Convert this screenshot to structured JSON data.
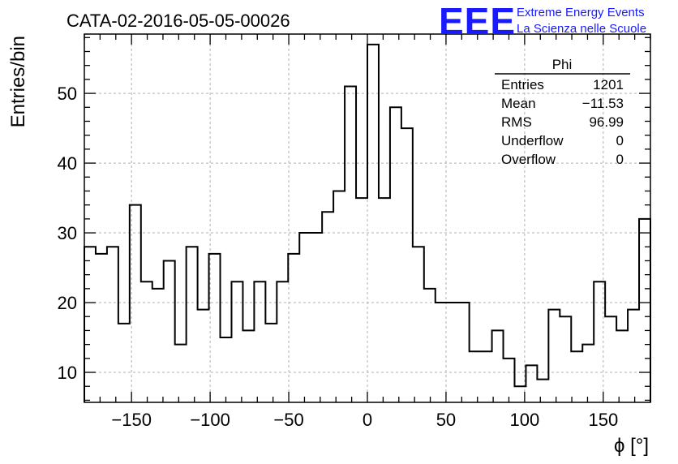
{
  "title": "CATA-02-2016-05-05-00026",
  "logo": {
    "mark": "EEE",
    "line1": "Extreme Energy Events",
    "line2": "La Scienza nelle Scuole",
    "color": "#1a1aff"
  },
  "stats": {
    "name": "Phi",
    "rows": [
      {
        "label": "Entries",
        "value": "1201"
      },
      {
        "label": "Mean",
        "value": "−11.53"
      },
      {
        "label": "RMS",
        "value": "96.99"
      },
      {
        "label": "Underflow",
        "value": "0"
      },
      {
        "label": "Overflow",
        "value": "0"
      }
    ]
  },
  "chart_data": {
    "type": "bar",
    "style": "step-histogram",
    "xlabel": "ϕ [°]",
    "ylabel": "Entries/bin",
    "xlim": [
      -180,
      180
    ],
    "ylim": [
      5.7,
      58.5
    ],
    "xticks": [
      -150,
      -100,
      -50,
      0,
      50,
      100,
      150
    ],
    "xtick_labels": [
      "−150",
      "−100",
      "−50",
      "0",
      "50",
      "100",
      "150"
    ],
    "yticks": [
      10,
      20,
      30,
      40,
      50
    ],
    "ytick_labels": [
      "10",
      "20",
      "30",
      "40",
      "50"
    ],
    "grid": true,
    "bin_width": 7.2,
    "values": [
      28,
      27,
      28,
      17,
      34,
      23,
      22,
      26,
      14,
      28,
      19,
      27,
      15,
      23,
      16,
      23,
      17,
      23,
      27,
      30,
      30,
      33,
      36,
      51,
      35,
      57,
      35,
      48,
      45,
      28,
      22,
      20,
      20,
      20,
      13,
      13,
      16,
      12,
      8,
      11,
      9,
      19,
      18,
      13,
      14,
      23,
      18,
      16,
      19,
      32
    ]
  }
}
